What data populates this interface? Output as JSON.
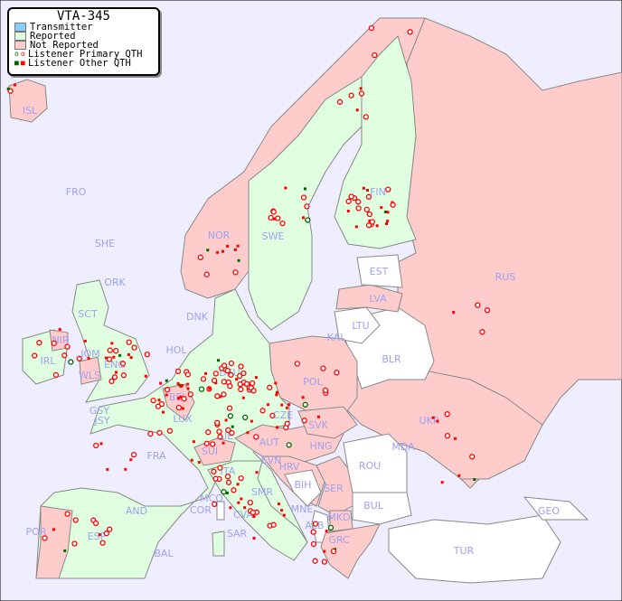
{
  "legend": {
    "title": "VTA-345",
    "items": [
      {
        "label": "Transmitter",
        "color": "#88ccff"
      },
      {
        "label": "Reported",
        "color": "#e0ffe0"
      },
      {
        "label": "Not Reported",
        "color": "#ffcccc"
      },
      {
        "label": "Listener Primary QTH",
        "marker": "circle"
      },
      {
        "label": "Listener Other QTH",
        "marker": "square"
      }
    ]
  },
  "colors": {
    "sea": "#eeeeff",
    "reported": "#e0ffe0",
    "not_reported": "#ffcccc",
    "no_data": "#ffffff",
    "border": "#888888",
    "label": "#a0a0f0",
    "marker_red": "#ff0000",
    "marker_green": "#006600"
  },
  "countries": [
    "ISL",
    "FRO",
    "SHE",
    "ORK",
    "SCT",
    "NIR",
    "IRL",
    "IOM",
    "ENG",
    "WLS",
    "GSY",
    "JSY",
    "HOL",
    "BEL",
    "LUX",
    "DEU",
    "DNK",
    "FRA",
    "SUI",
    "LIE",
    "AUT",
    "CZE",
    "SVK",
    "HNG",
    "SVN",
    "HRV",
    "BIH",
    "MNE",
    "ALB",
    "SER",
    "ROU",
    "MDA",
    "BUL",
    "MKD",
    "GRC",
    "TUR",
    "GEO",
    "ITA",
    "SMR",
    "CVA",
    "MCO",
    "COR",
    "SAR",
    "AND",
    "ESP",
    "POR",
    "BAL",
    "POL",
    "KAL",
    "LTU",
    "LVA",
    "EST",
    "FIN",
    "SWE",
    "NOR",
    "RUS",
    "BLR",
    "UKR"
  ]
}
